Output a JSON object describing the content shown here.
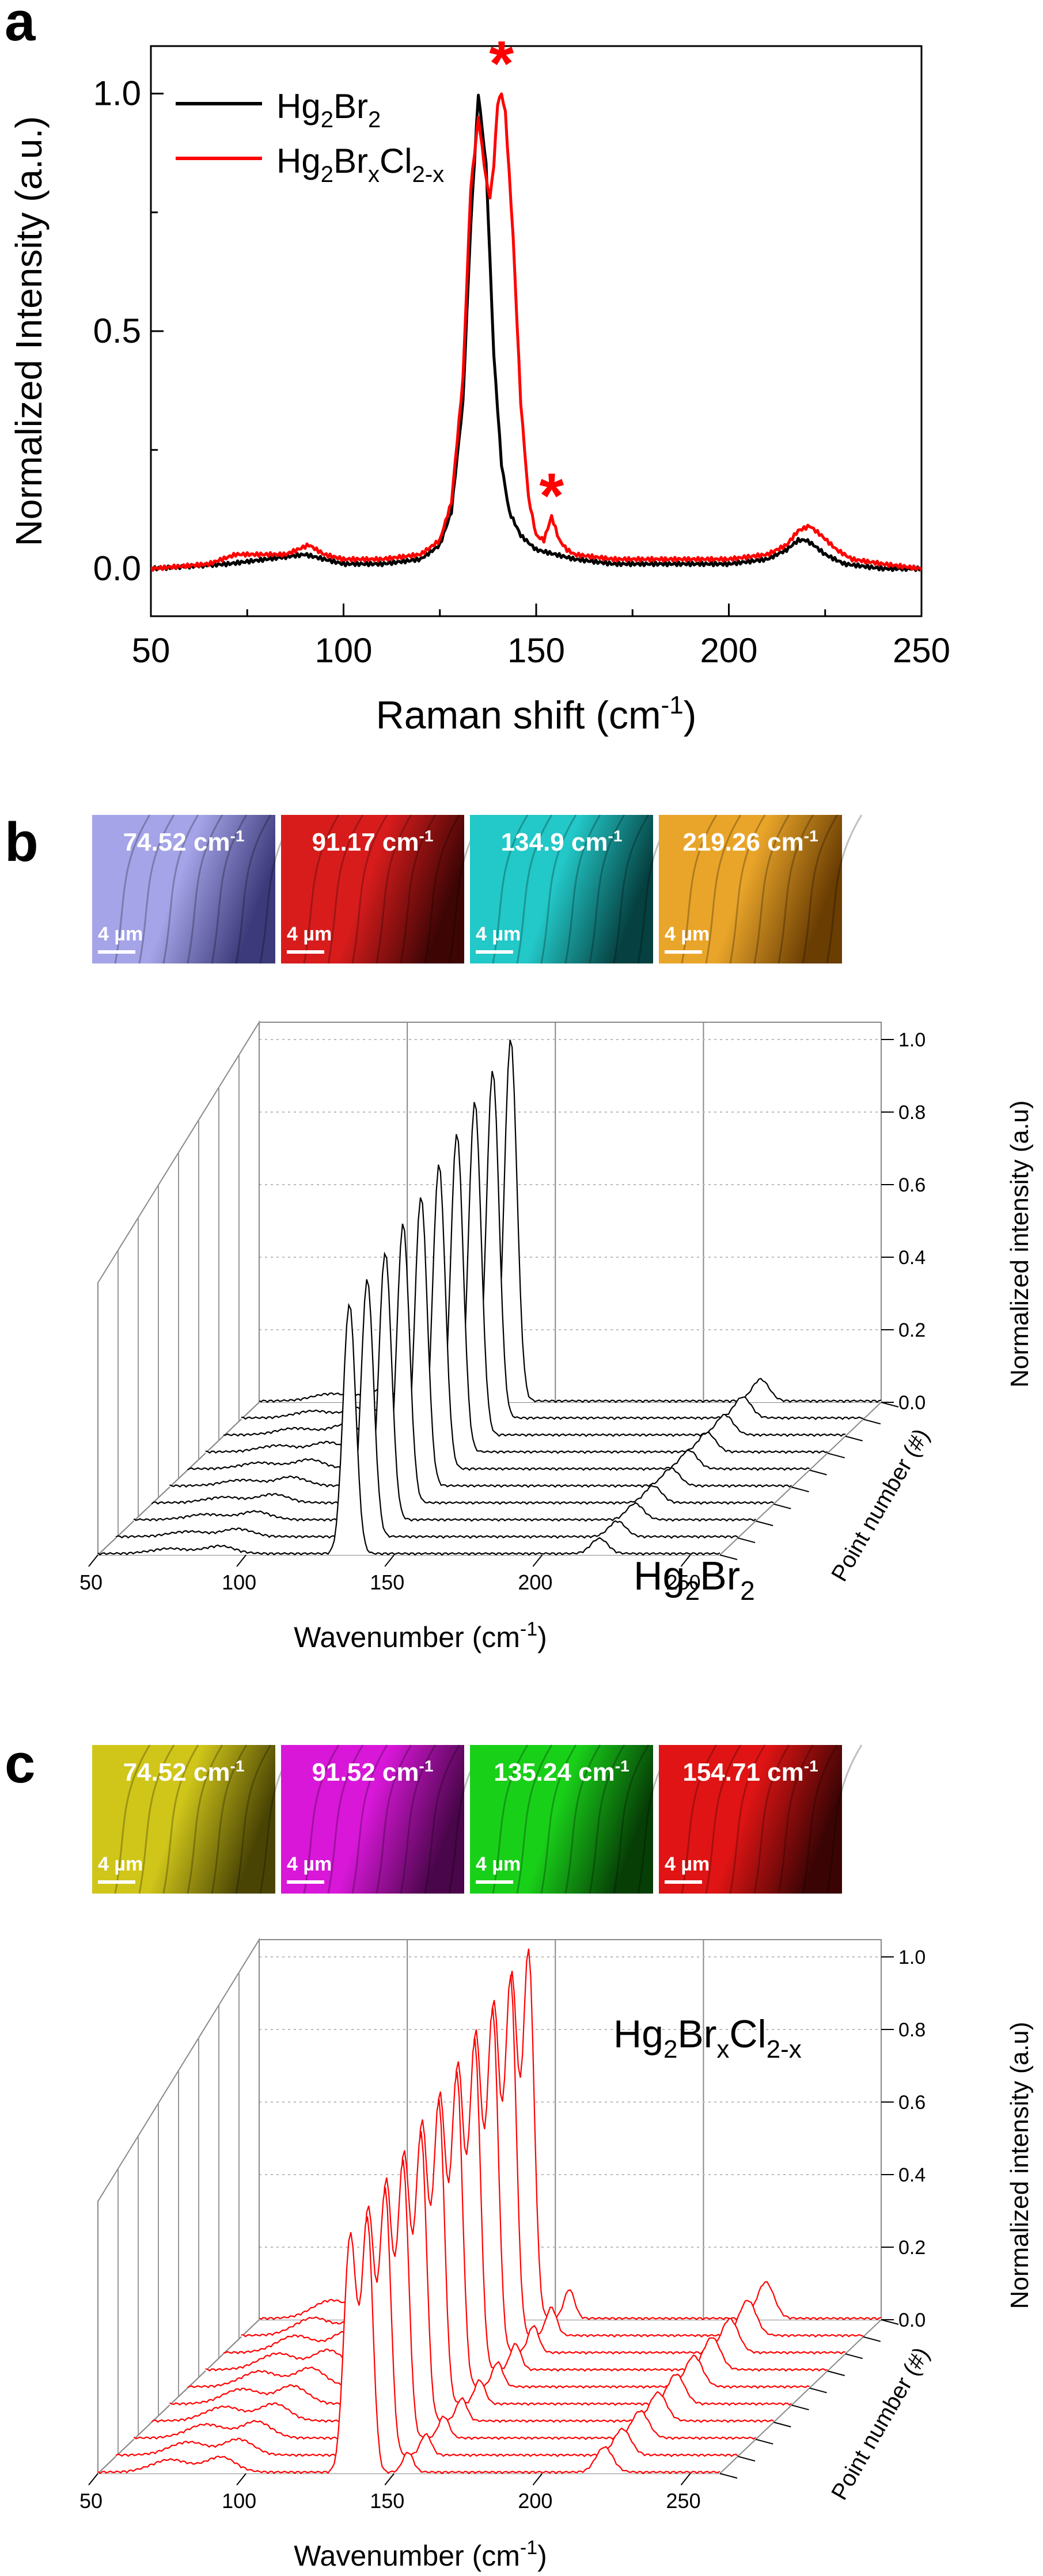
{
  "panels": [
    {
      "id": "a",
      "panel_label": "a",
      "chart_data": {
        "type": "line",
        "xlabel": "Raman shift (cm",
        "xlabel_sup": "-1",
        "xlabel_end": ")",
        "ylabel": "Normalized Intensity (a.u.)",
        "xlim": [
          50,
          250
        ],
        "ylim": [
          -0.1,
          1.1
        ],
        "xticks": [
          "50",
          "100",
          "150",
          "200",
          "250"
        ],
        "yticks": [
          "0.0",
          "0.5",
          "1.0"
        ],
        "legend_position": "top-left",
        "series": [
          {
            "name": "Hg2Br2",
            "legend": {
              "base": "Hg",
              "s1": "2",
              "mid": "Br",
              "s2": "2",
              "mid2": "",
              "s3": "",
              "mid3": "",
              "s4": ""
            },
            "color": "#000000",
            "x": [
              50,
              70,
              80,
              90,
              100,
              110,
              120,
              125,
              128,
              131,
              133,
              135,
              137,
              139,
              141,
              143,
              146,
              150,
              155,
              160,
              170,
              180,
              190,
              200,
              210,
              215,
              218,
              220,
              222,
              225,
              230,
              240,
              250
            ],
            "y": [
              0.0,
              0.01,
              0.02,
              0.03,
              0.01,
              0.01,
              0.02,
              0.05,
              0.12,
              0.35,
              0.72,
              1.0,
              0.85,
              0.45,
              0.22,
              0.12,
              0.07,
              0.04,
              0.03,
              0.02,
              0.01,
              0.01,
              0.01,
              0.01,
              0.02,
              0.04,
              0.06,
              0.06,
              0.05,
              0.03,
              0.01,
              0.0,
              0.0
            ]
          },
          {
            "name": "Hg2BrxCl2-x",
            "legend": {
              "base": "Hg",
              "s1": "2",
              "mid": "Br",
              "s2": "x",
              "mid2": "Cl",
              "s3": "2-x",
              "mid3": "",
              "s4": ""
            },
            "color": "#ff0000",
            "x": [
              50,
              65,
              72,
              75,
              80,
              85,
              88,
              91,
              95,
              100,
              110,
              120,
              125,
              128,
              131,
              133,
              135,
              137,
              138,
              139,
              140,
              141,
              142,
              144,
              146,
              148,
              150,
              152,
              154,
              156,
              158,
              160,
              170,
              180,
              190,
              200,
              210,
              215,
              218,
              221,
              224,
              228,
              232,
              240,
              250
            ],
            "y": [
              0.0,
              0.01,
              0.03,
              0.03,
              0.03,
              0.03,
              0.04,
              0.05,
              0.03,
              0.02,
              0.02,
              0.03,
              0.06,
              0.14,
              0.4,
              0.8,
              0.95,
              0.82,
              0.78,
              0.85,
              0.98,
              1.0,
              0.96,
              0.7,
              0.35,
              0.15,
              0.07,
              0.06,
              0.11,
              0.06,
              0.04,
              0.03,
              0.02,
              0.02,
              0.02,
              0.02,
              0.03,
              0.05,
              0.08,
              0.09,
              0.07,
              0.04,
              0.02,
              0.01,
              0.0
            ]
          }
        ],
        "annotations": [
          {
            "text": "*",
            "x": 141,
            "y": 1.03
          },
          {
            "text": "*",
            "x": 154,
            "y": 0.12
          }
        ]
      }
    },
    {
      "id": "b",
      "panel_label": "b",
      "maps": [
        {
          "caption": "74.52 cm",
          "sup": "-1",
          "scalebar": "4 µm",
          "color_light": "#a5a4e8",
          "color_dark": "#3c3a7a"
        },
        {
          "caption": "91.17 cm",
          "sup": "-1",
          "scalebar": "4 µm",
          "color_light": "#d81c1c",
          "color_dark": "#3e0505"
        },
        {
          "caption": "134.9 cm",
          "sup": "-1",
          "scalebar": "4 µm",
          "color_light": "#23c8c8",
          "color_dark": "#064040"
        },
        {
          "caption": "219.26 cm",
          "sup": "-1",
          "scalebar": "4 µm",
          "color_light": "#e9a52a",
          "color_dark": "#6a3d02"
        }
      ],
      "chart_data": {
        "type": "line",
        "subtype": "waterfall-3d",
        "line_color": "#000000",
        "compound": {
          "base": "Hg",
          "s1": "2",
          "mid": "Br",
          "s2": "2",
          "mid2": "",
          "s3": ""
        },
        "xlabel": "Wavenumber (cm",
        "xlabel_sup": "-1",
        "xlabel_end": ")",
        "ylabel": "Normalized intensity (a.u)",
        "zlabel": "Point number (#)",
        "xlim": [
          50,
          260
        ],
        "xticks": [
          "50",
          "100",
          "150",
          "200",
          "250"
        ],
        "yticks": [
          "0.0",
          "0.2",
          "0.4",
          "0.6",
          "0.8",
          "1.0"
        ],
        "num_traces": 10,
        "peak_heights": [
          0.69,
          0.71,
          0.74,
          0.77,
          0.8,
          0.84,
          0.88,
          0.92,
          0.96,
          1.0
        ],
        "peaks": [
          {
            "center": 74.5,
            "width": 9,
            "height": 0.02
          },
          {
            "center": 91.2,
            "width": 7,
            "height": 0.03
          },
          {
            "center": 134.9,
            "width": 3,
            "height": 1.0
          },
          {
            "center": 219.3,
            "width": 4,
            "height": 0.06
          }
        ]
      }
    },
    {
      "id": "c",
      "panel_label": "c",
      "maps": [
        {
          "caption": "74.52 cm",
          "sup": "-1",
          "scalebar": "4 µm",
          "color_light": "#d0c61a",
          "color_dark": "#4a4404"
        },
        {
          "caption": "91.52 cm",
          "sup": "-1",
          "scalebar": "4 µm",
          "color_light": "#d817d8",
          "color_dark": "#4a064a"
        },
        {
          "caption": "135.24 cm",
          "sup": "-1",
          "scalebar": "4 µm",
          "color_light": "#19d019",
          "color_dark": "#063e06"
        },
        {
          "caption": "154.71 cm",
          "sup": "-1",
          "scalebar": "4 µm",
          "color_light": "#e01414",
          "color_dark": "#3a0404"
        }
      ],
      "chart_data": {
        "type": "line",
        "subtype": "waterfall-3d",
        "line_color": "#ff0000",
        "compound": {
          "base": "Hg",
          "s1": "2",
          "mid": "Br",
          "s2": "x",
          "mid2": "Cl",
          "s3": "2-x"
        },
        "xlabel": "Wavenumber (cm",
        "xlabel_sup": "-1",
        "xlabel_end": ")",
        "ylabel": "Normalized intensity (a.u)",
        "zlabel": "Point number (#)",
        "xlim": [
          50,
          260
        ],
        "xticks": [
          "50",
          "100",
          "150",
          "200",
          "250"
        ],
        "yticks": [
          "0.0",
          "0.2",
          "0.4",
          "0.6",
          "0.8",
          "1.0"
        ],
        "num_traces": 10,
        "peak_heights": [
          0.69,
          0.72,
          0.75,
          0.78,
          0.82,
          0.85,
          0.89,
          0.93,
          0.97,
          1.0
        ],
        "peaks": [
          {
            "center": 74.5,
            "width": 9,
            "height": 0.05
          },
          {
            "center": 91.5,
            "width": 7,
            "height": 0.06
          },
          {
            "center": 135.2,
            "width": 3,
            "height": 0.95
          },
          {
            "center": 141.0,
            "width": 2.6,
            "height": 1.0
          },
          {
            "center": 154.7,
            "width": 2.5,
            "height": 0.08
          },
          {
            "center": 221.0,
            "width": 4,
            "height": 0.1
          }
        ]
      }
    }
  ]
}
